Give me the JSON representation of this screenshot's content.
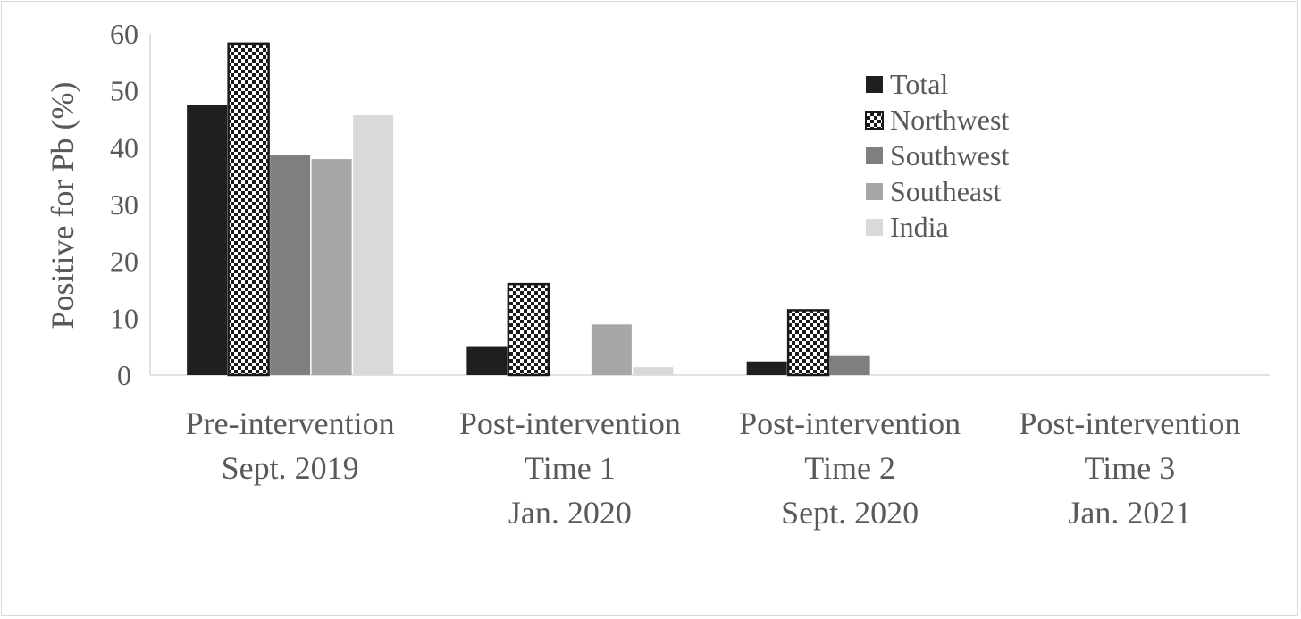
{
  "chart_data": {
    "type": "bar",
    "title": "",
    "xlabel": "",
    "ylabel": "Positive for Pb (%)",
    "ylim": [
      0,
      60
    ],
    "yticks": [
      "0",
      "10",
      "20",
      "30",
      "40",
      "50",
      "60"
    ],
    "grid": false,
    "legend_position": "top-right",
    "categories": [
      [
        "Pre-intervention",
        "Sept. 2019"
      ],
      [
        "Post-intervention",
        "Time 1",
        "Jan. 2020"
      ],
      [
        "Post-intervention",
        "Time 2",
        "Sept. 2020"
      ],
      [
        "Post-intervention",
        "Time 3",
        "Jan. 2021"
      ]
    ],
    "series": [
      {
        "name": "Total",
        "values": [
          47.5,
          5.1,
          2.4,
          0
        ],
        "color": "#1f1f1f",
        "pattern": "solid"
      },
      {
        "name": "Northwest",
        "values": [
          58.3,
          16.0,
          11.4,
          0
        ],
        "color": "#1a1a1a",
        "pattern": "checker"
      },
      {
        "name": "Southwest",
        "values": [
          38.7,
          0,
          3.5,
          0
        ],
        "color": "#7f7f7f",
        "pattern": "solid"
      },
      {
        "name": "Southeast",
        "values": [
          38.0,
          8.9,
          0,
          0
        ],
        "color": "#a6a6a6",
        "pattern": "solid"
      },
      {
        "name": "India",
        "values": [
          45.7,
          1.4,
          0,
          0
        ],
        "color": "#d9d9d9",
        "pattern": "solid"
      }
    ]
  }
}
